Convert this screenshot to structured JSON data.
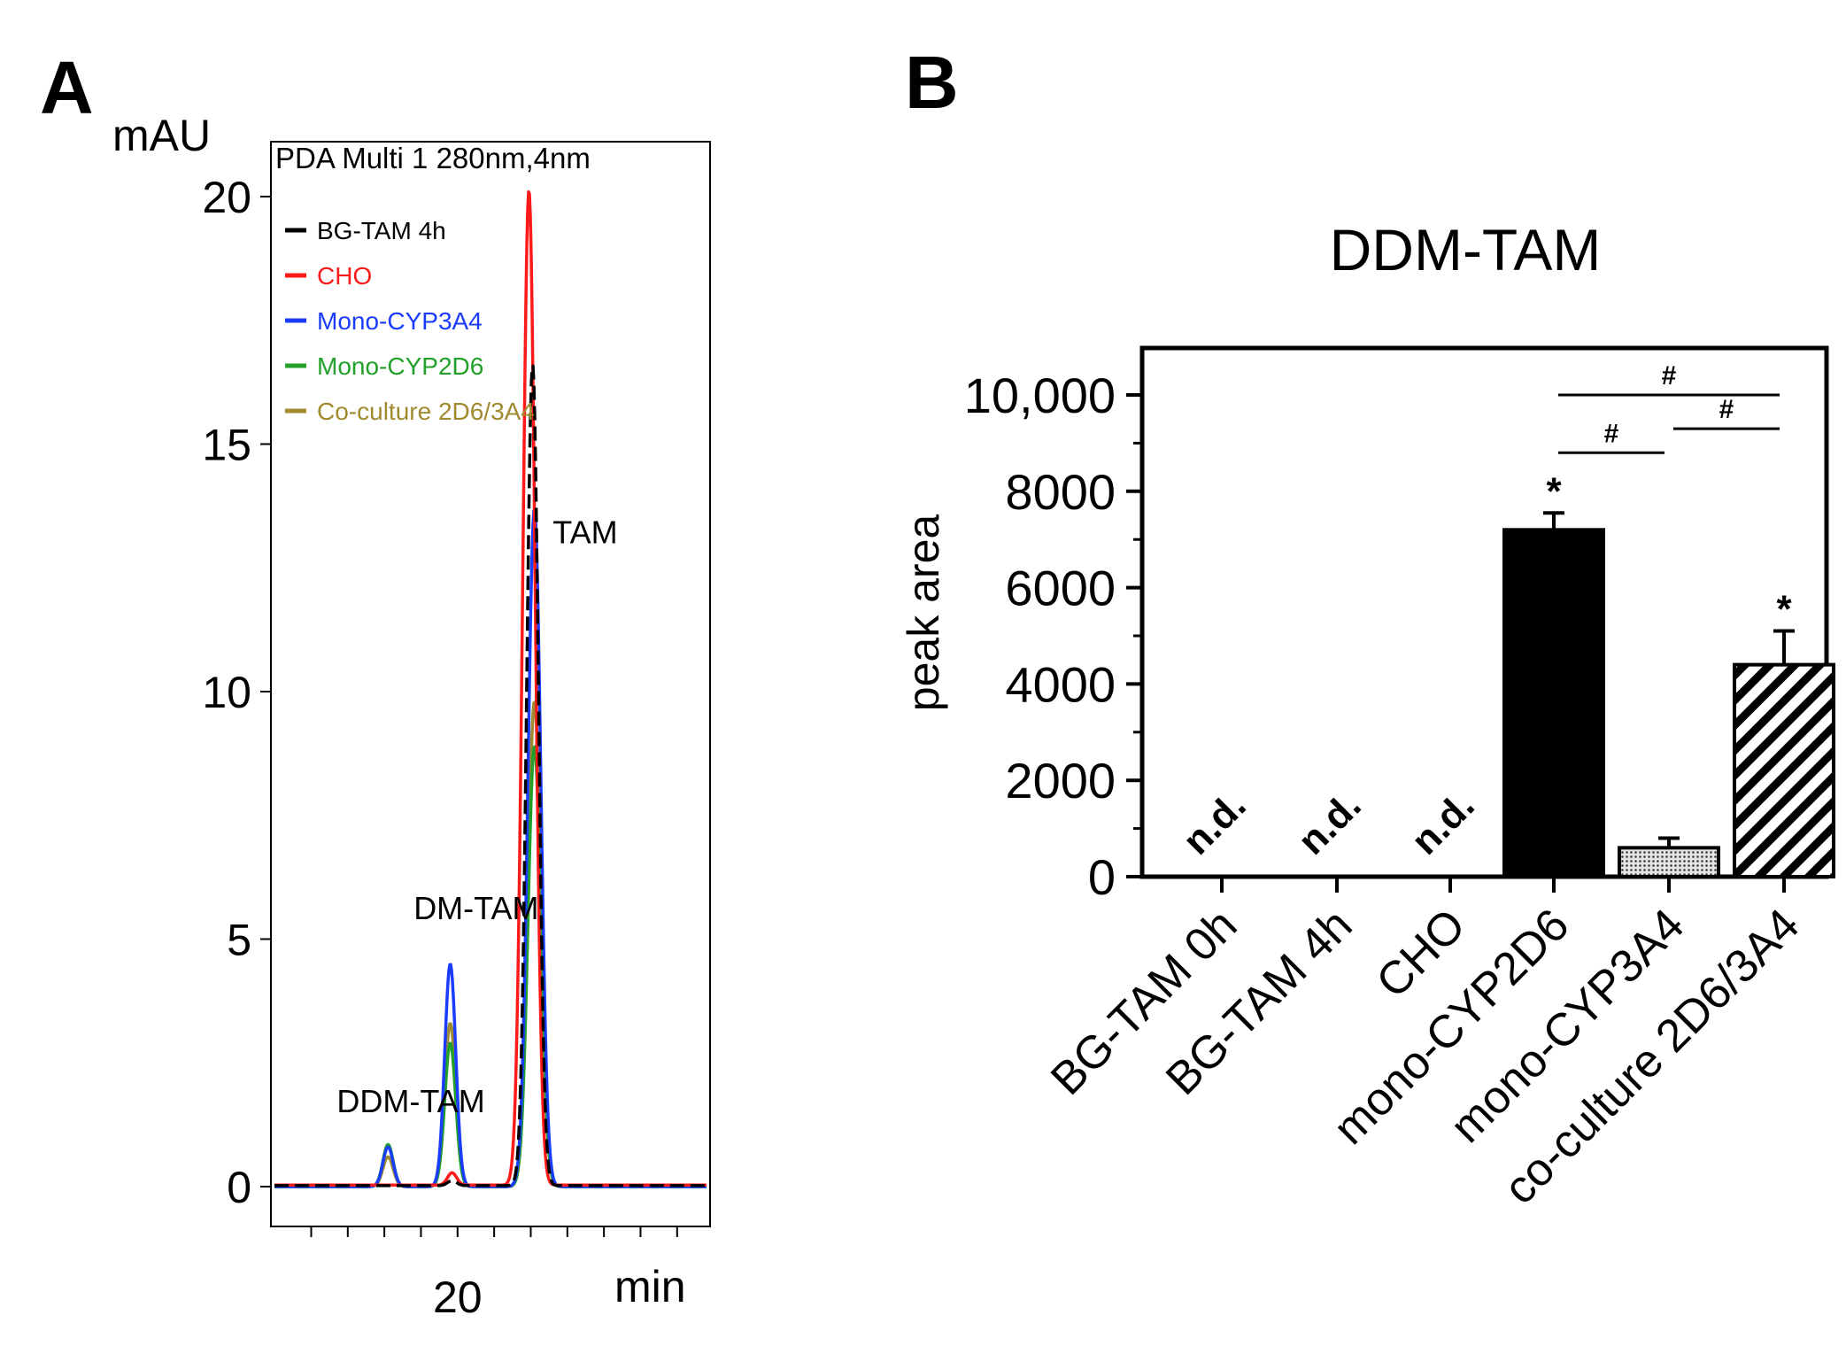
{
  "chart_data": [
    {
      "panel": "A",
      "type": "line",
      "subtitle": "PDA Multi 1 280nm,4nm",
      "ylabel": "mAU",
      "xlabel": "min",
      "ylim": [
        -0.8,
        21.2
      ],
      "xlim": [
        9.8,
        33.8
      ],
      "yticks": [
        0,
        5,
        10,
        15,
        20
      ],
      "xtick_labels": [
        {
          "x": 20,
          "label": "20"
        }
      ],
      "grid": false,
      "legend_position": "top-left",
      "series": [
        {
          "name": "BG-TAM 4h",
          "color": "#000000",
          "dash": "16 7",
          "baseline": 0.02,
          "peaks": [
            {
              "x": 24.1,
              "height": 16.6,
              "width": 0.32
            },
            {
              "x": 19.7,
              "height": 0.1,
              "width": 0.25
            }
          ]
        },
        {
          "name": "CHO",
          "color": "#ff1a1a",
          "dash": "",
          "baseline": 0.03,
          "peaks": [
            {
              "x": 23.9,
              "height": 20.1,
              "width": 0.34
            },
            {
              "x": 19.7,
              "height": 0.25,
              "width": 0.25
            }
          ]
        },
        {
          "name": "Mono-CYP3A4",
          "color": "#1a3cff",
          "dash": "",
          "baseline": 0.0,
          "peaks": [
            {
              "x": 24.2,
              "height": 13.7,
              "width": 0.35
            },
            {
              "x": 19.6,
              "height": 4.5,
              "width": 0.3
            },
            {
              "x": 16.2,
              "height": 0.8,
              "width": 0.28
            }
          ]
        },
        {
          "name": "Mono-CYP2D6",
          "color": "#22a02a",
          "dash": "",
          "baseline": 0.0,
          "peaks": [
            {
              "x": 24.2,
              "height": 8.9,
              "width": 0.35
            },
            {
              "x": 19.6,
              "height": 2.9,
              "width": 0.3
            },
            {
              "x": 16.2,
              "height": 0.85,
              "width": 0.28
            }
          ]
        },
        {
          "name": "Co-culture 2D6/3A4",
          "color": "#a08a30",
          "dash": "",
          "baseline": 0.0,
          "peaks": [
            {
              "x": 24.2,
              "height": 9.8,
              "width": 0.35
            },
            {
              "x": 19.6,
              "height": 3.3,
              "width": 0.3
            },
            {
              "x": 16.2,
              "height": 0.6,
              "width": 0.28
            }
          ]
        }
      ],
      "annotations": [
        {
          "text": "TAM",
          "x": 25.2,
          "y": 13.0
        },
        {
          "text": "DM-TAM",
          "x": 17.6,
          "y": 5.4
        },
        {
          "text": "DDM-TAM",
          "x": 13.4,
          "y": 1.5
        }
      ]
    },
    {
      "panel": "B",
      "type": "bar",
      "title": "DDM-TAM",
      "ylabel": "peak area",
      "xlabel": "",
      "ylim": [
        0,
        11000
      ],
      "yticks": [
        0,
        2000,
        4000,
        6000,
        8000,
        10000
      ],
      "ytick_labels": [
        "0",
        "2000",
        "4000",
        "6000",
        "8000",
        "10,000"
      ],
      "grid": false,
      "categories": [
        "BG-TAM 0h",
        "BG-TAM 4h",
        "CHO",
        "mono-CYP2D6",
        "mono-CYP3A4",
        "co-culture 2D6/3A4"
      ],
      "values": [
        null,
        null,
        null,
        7200,
        600,
        4400
      ],
      "errors": [
        null,
        null,
        null,
        350,
        200,
        700
      ],
      "fills": [
        "none",
        "none",
        "none",
        "solid",
        "dotted",
        "hatched"
      ],
      "nd_label": "n.d.",
      "star_label": "*",
      "star_bars": [
        3,
        5
      ],
      "significance": [
        {
          "from": 3,
          "to": 4,
          "label": "#",
          "y": 8800
        },
        {
          "from": 4,
          "to": 5,
          "label": "#",
          "y": 9300
        },
        {
          "from": 3,
          "to": 5,
          "label": "#",
          "y": 10000
        }
      ]
    }
  ],
  "panel_labels": {
    "a": "A",
    "b": "B"
  }
}
